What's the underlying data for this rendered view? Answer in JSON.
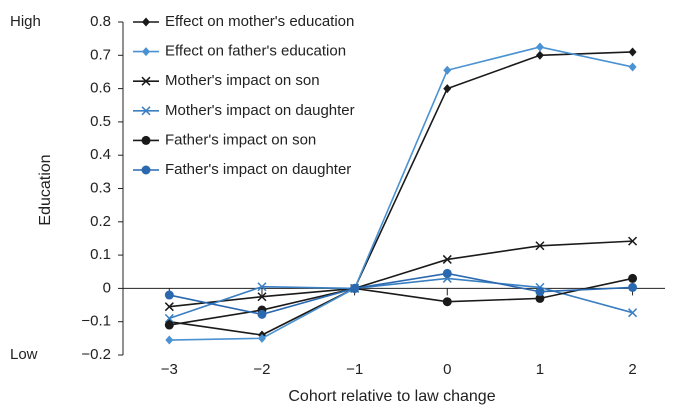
{
  "chart_data": {
    "type": "line",
    "x_label": "Cohort relative to law change",
    "y_label": "Education",
    "annotations": {
      "high": "High",
      "low": "Low"
    },
    "x": [
      -3,
      -2,
      -1,
      0,
      1,
      2
    ],
    "xlim": [
      -3.5,
      2.35
    ],
    "xticks": [
      {
        "value": -3,
        "label": "−3"
      },
      {
        "value": -2,
        "label": "−2"
      },
      {
        "value": -1,
        "label": "−1"
      },
      0,
      1,
      2
    ],
    "ylim": [
      -0.2,
      0.8
    ],
    "yticks": [
      {
        "value": -0.2,
        "label": "−0.2"
      },
      {
        "value": -0.1,
        "label": "−0.1"
      },
      0,
      0.1,
      0.2,
      0.3,
      0.4,
      0.5,
      0.6,
      0.7,
      0.8
    ],
    "legend": "upper left",
    "series": [
      {
        "name": "Effect on mother's education",
        "color": "#1a1a1a",
        "marker": "diamond",
        "values": [
          -0.1,
          -0.14,
          0,
          0.6,
          0.7,
          0.71
        ]
      },
      {
        "name": "Effect on father's education",
        "color": "#4a92d2",
        "marker": "diamond",
        "values": [
          -0.155,
          -0.15,
          0,
          0.655,
          0.725,
          0.665
        ]
      },
      {
        "name": "Mother's impact on son",
        "color": "#1a1a1a",
        "marker": "x",
        "values": [
          -0.055,
          -0.025,
          0,
          0.087,
          0.128,
          0.142
        ]
      },
      {
        "name": "Mother's impact on daughter",
        "color": "#3a7fc1",
        "marker": "x",
        "values": [
          -0.09,
          0.005,
          0,
          0.03,
          0.003,
          -0.073
        ]
      },
      {
        "name": "Father's impact on son",
        "color": "#1a1a1a",
        "marker": "circle",
        "values": [
          -0.11,
          -0.065,
          0,
          -0.04,
          -0.03,
          0.03
        ]
      },
      {
        "name": "Father's impact on daughter",
        "color": "#2a69b0",
        "marker": "circle",
        "values": [
          -0.02,
          -0.078,
          0,
          0.045,
          -0.01,
          0.003
        ]
      }
    ]
  }
}
